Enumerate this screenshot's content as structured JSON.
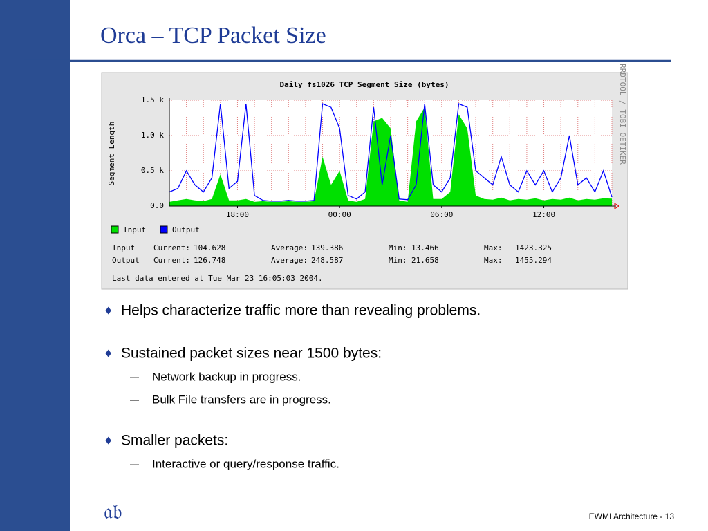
{
  "slide": {
    "title": "Orca – TCP Packet Size",
    "bullets": [
      {
        "marker": "♦",
        "text": "Helps characterize traffic more than revealing problems.",
        "sub": []
      },
      {
        "marker": "♦",
        "text": "Sustained packet sizes near 1500 bytes:",
        "sub": [
          {
            "marker": "—",
            "text": "Network backup in progress."
          },
          {
            "marker": "—",
            "text": "Bulk File transfers are in progress."
          }
        ]
      },
      {
        "marker": "♦",
        "text": "Smaller packets:",
        "sub": [
          {
            "marker": "—",
            "text": "Interactive or query/response traffic."
          }
        ]
      }
    ],
    "logo": "𝔞𝔟",
    "footer": "EWMI Architecture - 13"
  },
  "chart_data": {
    "type": "area-line",
    "title": "Daily fs1026 TCP Segment Size (bytes)",
    "ylabel": "Segment Length",
    "side_label": "RRDTOOL / TOBI OETIKER",
    "categories": [
      null,
      null,
      null,
      null,
      null,
      null,
      null,
      null,
      "18:00",
      null,
      null,
      null,
      null,
      null,
      null,
      null,
      null,
      null,
      null,
      null,
      "00:00",
      null,
      null,
      null,
      null,
      null,
      null,
      null,
      null,
      null,
      null,
      null,
      "06:00",
      null,
      null,
      null,
      null,
      null,
      null,
      null,
      null,
      null,
      null,
      null,
      "12:00",
      null,
      null,
      null,
      null,
      null,
      null,
      null,
      null
    ],
    "series": [
      {
        "name": "Input",
        "color": "#00e000",
        "style": "area",
        "values": [
          60,
          80,
          100,
          80,
          70,
          100,
          450,
          80,
          80,
          100,
          60,
          70,
          60,
          60,
          70,
          60,
          60,
          70,
          700,
          300,
          500,
          80,
          60,
          100,
          1200,
          1250,
          1100,
          80,
          60,
          1200,
          1400,
          100,
          100,
          200,
          1300,
          1100,
          150,
          100,
          90,
          120,
          80,
          100,
          90,
          110,
          80,
          100,
          90,
          120,
          80,
          100,
          90,
          110,
          105
        ]
      },
      {
        "name": "Output",
        "color": "#0000ff",
        "style": "line",
        "values": [
          200,
          250,
          500,
          300,
          200,
          400,
          1450,
          250,
          350,
          1450,
          150,
          80,
          70,
          70,
          80,
          70,
          70,
          80,
          1450,
          1400,
          1100,
          150,
          100,
          200,
          1400,
          300,
          1000,
          100,
          90,
          300,
          1450,
          300,
          200,
          400,
          1450,
          1400,
          500,
          400,
          300,
          700,
          300,
          200,
          500,
          300,
          500,
          200,
          400,
          1000,
          300,
          400,
          200,
          500,
          127
        ]
      }
    ],
    "ylim": [
      0,
      1500
    ],
    "yticks": [
      {
        "value": 0,
        "label": "0.0"
      },
      {
        "value": 500,
        "label": "0.5 k"
      },
      {
        "value": 1000,
        "label": "1.0 k"
      },
      {
        "value": 1500,
        "label": "1.5 k"
      }
    ],
    "grid": true,
    "stats": [
      [
        "Input",
        "Current:",
        "104.628",
        "Average:",
        "139.386",
        "Min:",
        "13.466",
        "Max:",
        "1423.325"
      ],
      [
        "Output",
        "Current:",
        "126.748",
        "Average:",
        "248.587",
        "Min:",
        "21.658",
        "Max:",
        "1455.294"
      ]
    ],
    "footnote": "Last data entered at Tue Mar 23 16:05:03 2004."
  }
}
